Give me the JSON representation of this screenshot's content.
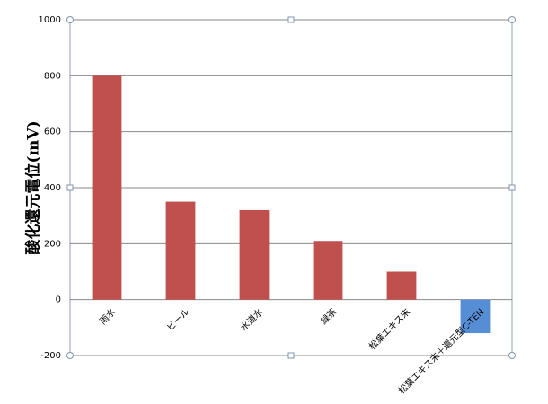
{
  "chart_data": {
    "type": "bar",
    "categories": [
      "雨水",
      "ビール",
      "水道水",
      "緑茶",
      "松葉エキス末",
      "松葉エキス末＋還元型C-TEN"
    ],
    "values": [
      800,
      350,
      320,
      210,
      100,
      -120
    ],
    "colors": [
      "#c0504d",
      "#c0504d",
      "#c0504d",
      "#c0504d",
      "#c0504d",
      "#558ed5"
    ],
    "y_label": "酸化還元電位(mV)",
    "ylim": [
      -200,
      1000
    ],
    "yticks": [
      -200,
      0,
      200,
      400,
      600,
      800,
      1000
    ],
    "grid": true
  }
}
